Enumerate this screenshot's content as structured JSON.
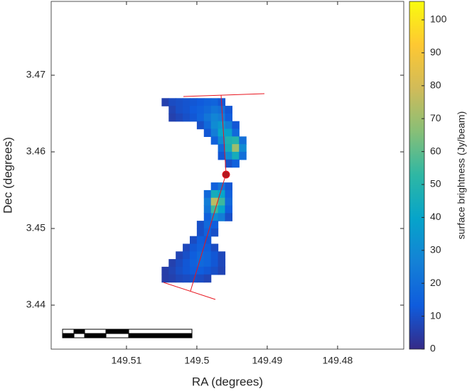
{
  "chart_data": {
    "type": "heatmap",
    "xlabel": "RA (degrees)",
    "ylabel": "Dec (degrees)",
    "colorbar_label": "surface brightness (Jy/beam)",
    "xlim": [
      149.5207,
      149.4706
    ],
    "xticks": [
      149.51,
      149.5,
      149.49,
      149.48
    ],
    "ylim": [
      3.43426,
      3.47963
    ],
    "yticks": [
      3.44,
      3.45,
      3.46,
      3.47
    ],
    "clim": [
      0,
      105.6
    ],
    "cticks": [
      0,
      10,
      20,
      30,
      40,
      50,
      60,
      70,
      80,
      90,
      100
    ],
    "colormap": [
      "#352a87",
      "#0f5cdd",
      "#1481d6",
      "#06a4ca",
      "#2eb7a4",
      "#87bf77",
      "#d1bb59",
      "#fec832",
      "#f9fb0e"
    ],
    "cells": [
      {
        "y": 3.4665,
        "x": [
          149.5045,
          149.5035,
          149.5025,
          149.5015,
          149.5005,
          149.4995,
          149.4985,
          149.4975,
          149.4965
        ],
        "values": [
          6,
          9,
          10,
          11,
          12,
          13,
          15,
          16,
          12
        ]
      },
      {
        "y": 3.4655,
        "x": [
          149.5035,
          149.5025,
          149.5015,
          149.5005,
          149.4995,
          149.4985,
          149.4975,
          149.4965,
          149.4955
        ],
        "values": [
          7,
          10,
          11,
          13,
          15,
          18,
          22,
          20,
          12
        ]
      },
      {
        "y": 3.4645,
        "x": [
          149.5035,
          149.5025,
          149.5015,
          149.5005,
          149.4995,
          149.4985,
          149.4975,
          149.4965,
          149.4955
        ],
        "values": [
          6,
          8,
          10,
          12,
          16,
          22,
          28,
          25,
          14
        ]
      },
      {
        "y": 3.4635,
        "x": [
          149.4995,
          149.4985,
          149.4975,
          149.4965,
          149.4955,
          149.4945
        ],
        "values": [
          10,
          18,
          30,
          35,
          25,
          12
        ]
      },
      {
        "y": 3.4625,
        "x": [
          149.4985,
          149.4975,
          149.4965,
          149.4955,
          149.4945
        ],
        "values": [
          12,
          25,
          40,
          38,
          18
        ]
      },
      {
        "y": 3.4615,
        "x": [
          149.4975,
          149.4965,
          149.4955,
          149.4945,
          149.4935
        ],
        "values": [
          15,
          30,
          48,
          50,
          20
        ]
      },
      {
        "y": 3.4605,
        "x": [
          149.4965,
          149.4955,
          149.4945,
          149.4935
        ],
        "values": [
          18,
          45,
          70,
          30
        ]
      },
      {
        "y": 3.4595,
        "x": [
          149.4965,
          149.4955,
          149.4945,
          149.4935
        ],
        "values": [
          12,
          30,
          45,
          20
        ]
      },
      {
        "y": 3.4585,
        "x": [
          149.4955,
          149.4945
        ],
        "values": [
          10,
          15
        ]
      },
      {
        "y": 3.4555,
        "x": [
          149.4975,
          149.4965,
          149.4955
        ],
        "values": [
          15,
          22,
          12
        ]
      },
      {
        "y": 3.4545,
        "x": [
          149.4985,
          149.4975,
          149.4965,
          149.4955
        ],
        "values": [
          18,
          45,
          40,
          15
        ]
      },
      {
        "y": 3.4535,
        "x": [
          149.4985,
          149.4975,
          149.4965,
          149.4955
        ],
        "values": [
          25,
          75,
          55,
          18
        ]
      },
      {
        "y": 3.4525,
        "x": [
          149.4985,
          149.4975,
          149.4965,
          149.4955
        ],
        "values": [
          22,
          55,
          40,
          14
        ]
      },
      {
        "y": 3.4515,
        "x": [
          149.4985,
          149.4975,
          149.4965,
          149.4955
        ],
        "values": [
          15,
          30,
          25,
          10
        ]
      },
      {
        "y": 3.4505,
        "x": [
          149.4995,
          149.4985,
          149.4975
        ],
        "values": [
          10,
          18,
          14
        ]
      },
      {
        "y": 3.4495,
        "x": [
          149.4995,
          149.4985,
          149.4975
        ],
        "values": [
          10,
          15,
          10
        ]
      },
      {
        "y": 3.4485,
        "x": [
          149.5005,
          149.4995,
          149.4985
        ],
        "values": [
          9,
          14,
          12
        ]
      },
      {
        "y": 3.4475,
        "x": [
          149.5015,
          149.5005,
          149.4995,
          149.4985,
          149.4975
        ],
        "values": [
          8,
          12,
          15,
          14,
          9
        ]
      },
      {
        "y": 3.4465,
        "x": [
          149.5025,
          149.5015,
          149.5005,
          149.4995,
          149.4985,
          149.4975,
          149.4965
        ],
        "values": [
          7,
          10,
          14,
          18,
          16,
          12,
          8
        ]
      },
      {
        "y": 3.4455,
        "x": [
          149.5035,
          149.5025,
          149.5015,
          149.5005,
          149.4995,
          149.4985,
          149.4975,
          149.4965
        ],
        "values": [
          6,
          9,
          12,
          15,
          18,
          16,
          12,
          8
        ]
      },
      {
        "y": 3.4445,
        "x": [
          149.5045,
          149.5035,
          149.5025,
          149.5015,
          149.5005,
          149.4995,
          149.4985,
          149.4975,
          149.4965
        ],
        "values": [
          5,
          7,
          10,
          12,
          14,
          14,
          12,
          10,
          7
        ]
      },
      {
        "y": 3.4435,
        "x": [
          149.5045,
          149.5035,
          149.5025,
          149.5015,
          149.5005,
          149.4995,
          149.4985
        ],
        "values": [
          5,
          6,
          8,
          9,
          10,
          9,
          7
        ]
      }
    ]
  }
}
